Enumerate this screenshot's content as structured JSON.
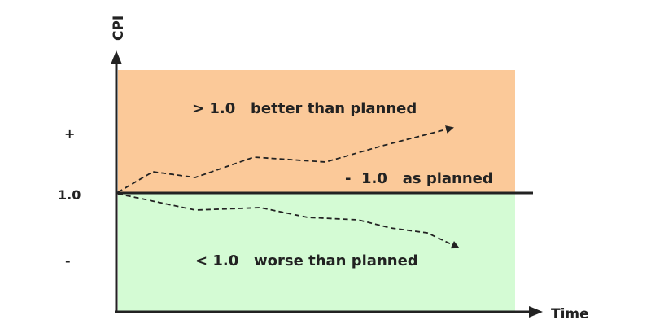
{
  "axes": {
    "y_label": "CPI",
    "x_label": "Time"
  },
  "scale": {
    "baseline_label": "1.0",
    "plus_label": "+",
    "minus_label": "-"
  },
  "zones": {
    "above": {
      "label": "> 1.0   better than planned",
      "color": "#fbc999"
    },
    "baseline": {
      "label": "-  1.0   as planned",
      "color": "#222222"
    },
    "below": {
      "label": "< 1.0   worse than planned",
      "color": "#d4fbd4"
    }
  },
  "trends": {
    "upper": {
      "style": "dashed",
      "direction": "rising"
    },
    "lower": {
      "style": "dashed",
      "direction": "falling"
    }
  }
}
